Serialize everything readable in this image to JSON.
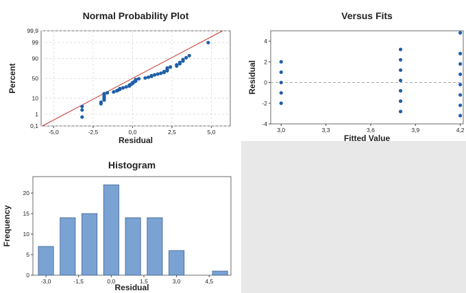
{
  "colors": {
    "page_background": "#e8e8e8",
    "panel_background": "#ffffff",
    "point": "#1f5fa8",
    "bar_fill": "#7aa3d4",
    "bar_stroke": "#3b5f8f",
    "fit_line": "#c0392b",
    "reference_line": "#9a9a9a"
  },
  "chart_data": [
    {
      "type": "scatter",
      "title": "Normal Probability Plot",
      "xlabel": "Residual",
      "ylabel": "Percent",
      "xlim": [
        -5.8,
        6.2
      ],
      "x_ticks": [
        "-5,0",
        "-2,5",
        "0,0",
        "2,5",
        "5,0"
      ],
      "x_tick_values": [
        -5,
        -2.5,
        0,
        2.5,
        5
      ],
      "y_ticks": [
        "0,1",
        "1",
        "10",
        "50",
        "90",
        "99",
        "99,9"
      ],
      "y_tick_values": [
        0.1,
        1,
        10,
        50,
        90,
        99,
        99.9
      ],
      "y_scale": "normal-probability",
      "grid": true,
      "fit_line": {
        "mean": 0,
        "sd": 1.85
      },
      "points": [
        [
          -3.2,
          0.6
        ],
        [
          -3.2,
          2.0
        ],
        [
          -3.2,
          3.4
        ],
        [
          -2.0,
          5.0
        ],
        [
          -2.0,
          6.1
        ],
        [
          -1.8,
          8.0
        ],
        [
          -1.8,
          9.3
        ],
        [
          -1.8,
          10.6
        ],
        [
          -1.8,
          12.0
        ],
        [
          -1.8,
          13.2
        ],
        [
          -1.8,
          14.5
        ],
        [
          -1.8,
          16.0
        ],
        [
          -1.6,
          17.5
        ],
        [
          -1.2,
          19.0
        ],
        [
          -1.0,
          21.0
        ],
        [
          -0.9,
          22.5
        ],
        [
          -0.8,
          24.0
        ],
        [
          -0.8,
          25.5
        ],
        [
          -0.6,
          27.0
        ],
        [
          -0.4,
          29.0
        ],
        [
          -0.2,
          31.0
        ],
        [
          -0.2,
          33.0
        ],
        [
          -0.1,
          35.0
        ],
        [
          0.0,
          37.0
        ],
        [
          0.0,
          39.0
        ],
        [
          0.1,
          41.0
        ],
        [
          0.2,
          43.0
        ],
        [
          0.2,
          45.0
        ],
        [
          0.2,
          47.0
        ],
        [
          0.4,
          49.0
        ],
        [
          0.8,
          51.0
        ],
        [
          1.0,
          53.0
        ],
        [
          1.2,
          55.0
        ],
        [
          1.2,
          57.0
        ],
        [
          1.4,
          59.0
        ],
        [
          1.6,
          61.0
        ],
        [
          1.8,
          63.0
        ],
        [
          2.0,
          65.0
        ],
        [
          2.0,
          67.0
        ],
        [
          2.2,
          69.0
        ],
        [
          2.2,
          71.0
        ],
        [
          2.2,
          73.0
        ],
        [
          2.2,
          75.0
        ],
        [
          2.4,
          77.0
        ],
        [
          2.8,
          79.0
        ],
        [
          2.8,
          81.0
        ],
        [
          3.0,
          83.0
        ],
        [
          3.0,
          85.0
        ],
        [
          3.2,
          87.0
        ],
        [
          3.2,
          89.0
        ],
        [
          3.4,
          91.0
        ],
        [
          3.6,
          93.0
        ],
        [
          4.8,
          99.0
        ]
      ]
    },
    {
      "type": "scatter",
      "title": "Versus Fits",
      "xlabel": "Fitted Value",
      "ylabel": "Residual",
      "xlim": [
        2.93,
        4.22
      ],
      "ylim": [
        -4,
        5
      ],
      "x_ticks": [
        "3,0",
        "3,3",
        "3,6",
        "3,9",
        "4,2"
      ],
      "x_tick_values": [
        3.0,
        3.3,
        3.6,
        3.9,
        4.2
      ],
      "y_ticks": [
        "-4",
        "-2",
        "0",
        "2",
        "4"
      ],
      "y_tick_values": [
        -4,
        -2,
        0,
        2,
        4
      ],
      "reference_line_y": 0,
      "points": [
        [
          3.0,
          2.0
        ],
        [
          3.0,
          1.0
        ],
        [
          3.0,
          0.0
        ],
        [
          3.0,
          -1.0
        ],
        [
          3.0,
          -2.0
        ],
        [
          3.8,
          3.2
        ],
        [
          3.8,
          2.2
        ],
        [
          3.8,
          1.2
        ],
        [
          3.8,
          0.2
        ],
        [
          3.8,
          -0.8
        ],
        [
          3.8,
          -1.8
        ],
        [
          3.8,
          -2.8
        ],
        [
          4.2,
          4.8
        ],
        [
          4.2,
          2.8
        ],
        [
          4.2,
          1.8
        ],
        [
          4.2,
          0.8
        ],
        [
          4.2,
          -0.2
        ],
        [
          4.2,
          -1.2
        ],
        [
          4.2,
          -2.2
        ],
        [
          4.2,
          -3.2
        ]
      ]
    },
    {
      "type": "bar",
      "title": "Histogram",
      "xlabel": "Residual",
      "ylabel": "Frequency",
      "x": [
        -3.0,
        -2.0,
        -1.0,
        0.0,
        1.0,
        2.0,
        3.0,
        4.0,
        5.0
      ],
      "values": [
        7,
        14,
        15,
        22,
        14,
        14,
        6,
        0,
        1
      ],
      "bin_width": 0.7,
      "xlim": [
        -3.6,
        5.5
      ],
      "ylim": [
        0,
        24
      ],
      "x_ticks": [
        "-3,0",
        "-1,5",
        "0,0",
        "1,5",
        "3,0",
        "4,5"
      ],
      "x_tick_values": [
        -3.0,
        -1.5,
        0.0,
        1.5,
        3.0,
        4.5
      ],
      "y_ticks": [
        "0",
        "5",
        "10",
        "15",
        "20"
      ],
      "y_tick_values": [
        0,
        5,
        10,
        15,
        20
      ]
    }
  ]
}
